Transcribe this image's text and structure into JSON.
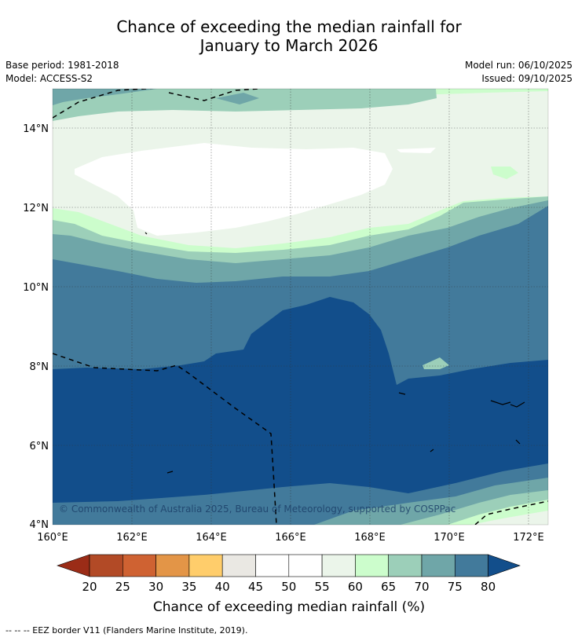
{
  "title_line1": "Chance of exceeding the median rainfall for",
  "title_line2": "January to March 2026",
  "base_period": "Base period: 1981-2018",
  "model": "Model: ACCESS-S2",
  "model_run": "Model run: 06/10/2025",
  "issued": "Issued: 09/10/2025",
  "copyright": "© Commonwealth of Australia 2025, Bureau of Meteorology, supported by COSPPac",
  "axes": {
    "x_ticks": [
      "160°E",
      "162°E",
      "164°E",
      "166°E",
      "168°E",
      "170°E",
      "172°E"
    ],
    "y_ticks": [
      "14°N",
      "12°N",
      "10°N",
      "8°N",
      "6°N",
      "4°N"
    ]
  },
  "colorbar": {
    "ticks": [
      "20",
      "25",
      "30",
      "35",
      "40",
      "45",
      "50",
      "55",
      "60",
      "65",
      "70",
      "75",
      "80"
    ],
    "label": "Chance of exceeding median rainfall (%)",
    "colors": {
      "below_20": "#9b2c17",
      "c20_25": "#b24a26",
      "c25_30": "#cf6232",
      "c30_35": "#e39547",
      "c35_40": "#ffcd6b",
      "c40_45": "#eae8e3",
      "c45_50": "#ffffff",
      "c50_55": "#ffffff",
      "c55_60": "#ebf5ea",
      "c60_65": "#ccfdcc",
      "c65_70": "#9ccfb9",
      "c70_75": "#6fa6a8",
      "c75_80": "#427a9b",
      "above_80": "#124e8b"
    }
  },
  "footer": "--  --  -- EEZ border V11 (Flanders Marine Institute, 2019)."
}
